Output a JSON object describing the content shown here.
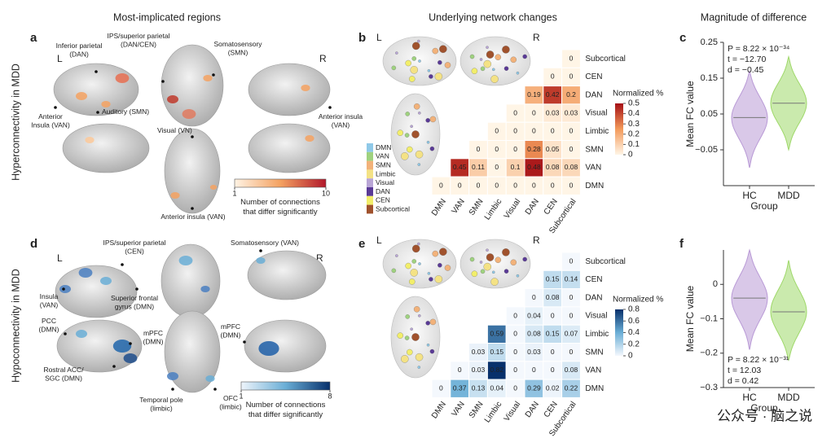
{
  "column_titles": [
    "Most-implicated regions",
    "Underlying network changes",
    "Magnitude of difference"
  ],
  "row_titles": [
    "Hyperconnectivity in MDD",
    "Hypoconnectivity in MDD"
  ],
  "panel_letters": [
    "a",
    "b",
    "c",
    "d",
    "e",
    "f"
  ],
  "panel_a": {
    "side_labels": [
      "L",
      "R"
    ],
    "regions": [
      [
        "Inferior parietal",
        "(DAN)"
      ],
      [
        "IPS/superior parietal",
        "(DAN/CEN)"
      ],
      [
        "Somatosensory",
        "(SMN)"
      ],
      [
        "Anterior",
        "Insula (VAN)"
      ],
      [
        "Auditory (SMN)"
      ],
      [
        "Visual (VN)"
      ],
      [
        "Anterior insula",
        "(VAN)"
      ],
      [
        "Anterior insula (VAN)"
      ]
    ],
    "colorbar": {
      "ticks": [
        1,
        10
      ],
      "label_lines": [
        "Number of connections",
        "that differ significantly"
      ],
      "colors": [
        "#fff3e4",
        "#f4a261",
        "#b2182b"
      ]
    }
  },
  "panel_d": {
    "side_labels": [
      "L",
      "R"
    ],
    "regions": [
      [
        "IPS/superior parietal",
        "(CEN)"
      ],
      [
        "Somatosensory (VAN)"
      ],
      [
        "Insula",
        "(VAN)"
      ],
      [
        "Superior frontal",
        "gyrus (DMN)"
      ],
      [
        "PCC",
        "(DMN)"
      ],
      [
        "mPFC",
        "(DMN)"
      ],
      [
        "mPFC",
        "(DMN)"
      ],
      [
        "Rostral ACC/",
        "SGC (DMN)"
      ],
      [
        "Temporal pole",
        "(limbic)"
      ],
      [
        "OFC",
        "(limbic)"
      ]
    ],
    "colorbar": {
      "ticks": [
        1,
        8
      ],
      "label_lines": [
        "Number of connections",
        "that differ significantly"
      ],
      "colors": [
        "#eef4fb",
        "#6aaed6",
        "#08306b"
      ]
    }
  },
  "network_legend": [
    {
      "name": "DMN",
      "color": "#8fc9e8"
    },
    {
      "name": "VAN",
      "color": "#9fd27f"
    },
    {
      "name": "SMN",
      "color": "#f2b27a"
    },
    {
      "name": "Limbic",
      "color": "#f4e285"
    },
    {
      "name": "Visual",
      "color": "#b9a6d6"
    },
    {
      "name": "DAN",
      "color": "#5a3a96"
    },
    {
      "name": "CEN",
      "color": "#f2ee6a"
    },
    {
      "name": "Subcortical",
      "color": "#a0522d"
    }
  ],
  "chart_data": [
    {
      "type": "heatmap",
      "side_labels": [
        "L",
        "R"
      ],
      "rows": [
        "Subcortical",
        "CEN",
        "DAN",
        "Visual",
        "Limbic",
        "SMN",
        "VAN",
        "DMN"
      ],
      "columns": [
        "DMN",
        "VAN",
        "SMN",
        "Limbic",
        "Visual",
        "DAN",
        "CEN",
        "Subcortical"
      ],
      "values": [
        [
          null,
          null,
          null,
          null,
          null,
          null,
          null,
          0
        ],
        [
          null,
          null,
          null,
          null,
          null,
          null,
          0,
          0
        ],
        [
          null,
          null,
          null,
          null,
          null,
          0.19,
          0.42,
          0.2
        ],
        [
          null,
          null,
          null,
          null,
          0,
          0,
          0.03,
          0.03
        ],
        [
          null,
          null,
          null,
          0,
          0,
          0,
          0,
          0
        ],
        [
          null,
          null,
          0,
          0,
          0,
          0.28,
          0.05,
          0
        ],
        [
          null,
          0.45,
          0.11,
          0,
          0.1,
          0.48,
          0.08,
          0.08
        ],
        [
          0,
          0,
          0,
          0,
          0,
          0,
          0,
          0
        ]
      ],
      "colorbar": {
        "label": "Normalized %",
        "ticks": [
          0,
          0.1,
          0.2,
          0.3,
          0.4,
          0.5
        ],
        "colors": [
          "#fff5e6",
          "#f39a5a",
          "#a50f15"
        ]
      }
    },
    {
      "type": "heatmap",
      "side_labels": [
        "L",
        "R"
      ],
      "rows": [
        "Subcortical",
        "CEN",
        "DAN",
        "Visual",
        "Limbic",
        "SMN",
        "VAN",
        "DMN"
      ],
      "columns": [
        "DMN",
        "VAN",
        "SMN",
        "Limbic",
        "Visual",
        "DAN",
        "CEN",
        "Subcortical"
      ],
      "values": [
        [
          null,
          null,
          null,
          null,
          null,
          null,
          null,
          0
        ],
        [
          null,
          null,
          null,
          null,
          null,
          null,
          0.15,
          0.14
        ],
        [
          null,
          null,
          null,
          null,
          null,
          0,
          0.08,
          0
        ],
        [
          null,
          null,
          null,
          null,
          0,
          0.04,
          0,
          0
        ],
        [
          null,
          null,
          null,
          0.59,
          0,
          0.08,
          0.15,
          0.07
        ],
        [
          null,
          null,
          0.03,
          0.15,
          0,
          0.03,
          0,
          0
        ],
        [
          null,
          0,
          0.03,
          0.82,
          0,
          0,
          0,
          0.08
        ],
        [
          0,
          0.37,
          0.13,
          0.04,
          0,
          0.29,
          0.02,
          0.22
        ]
      ],
      "colorbar": {
        "label": "Normalized %",
        "ticks": [
          0,
          0.2,
          0.4,
          0.6,
          0.8
        ],
        "colors": [
          "#f4f8fd",
          "#6aaed6",
          "#08306b"
        ]
      }
    },
    {
      "type": "violin",
      "categories": [
        "HC",
        "MDD"
      ],
      "colors": [
        "#b99ad6",
        "#9fd86a"
      ],
      "values": [
        0.04,
        0.08
      ],
      "mins": [
        -0.1,
        -0.05
      ],
      "maxs": [
        0.17,
        0.21
      ],
      "ylim": [
        -0.15,
        0.25
      ],
      "yticks": [
        {
          "value": -0.05,
          "label": "−0.05"
        },
        0.05,
        0.15,
        0.25
      ],
      "xlabel": "Group",
      "ylabel": "Mean FC value",
      "annotations": [
        "P = 8.22 × 10⁻³⁴",
        "t = −12.70",
        "d = −0.45"
      ]
    },
    {
      "type": "violin",
      "categories": [
        "HC",
        "MDD"
      ],
      "colors": [
        "#b99ad6",
        "#9fd86a"
      ],
      "values": [
        -0.04,
        -0.08
      ],
      "mins": [
        -0.19,
        -0.22
      ],
      "maxs": [
        0.1,
        0.07
      ],
      "ylim": [
        -0.3,
        0.1
      ],
      "yticks": [
        {
          "value": -0.3,
          "label": "−0.3"
        },
        {
          "value": -0.2,
          "label": "−0.2"
        },
        {
          "value": -0.1,
          "label": "−0.1"
        },
        0
      ],
      "xlabel": "Group",
      "ylabel": "Mean FC value",
      "annotations": [
        "P = 8.22 × 10⁻³¹",
        "t = 12.03",
        "d = 0.42"
      ]
    }
  ],
  "watermark": "公众号 · 脑之说"
}
